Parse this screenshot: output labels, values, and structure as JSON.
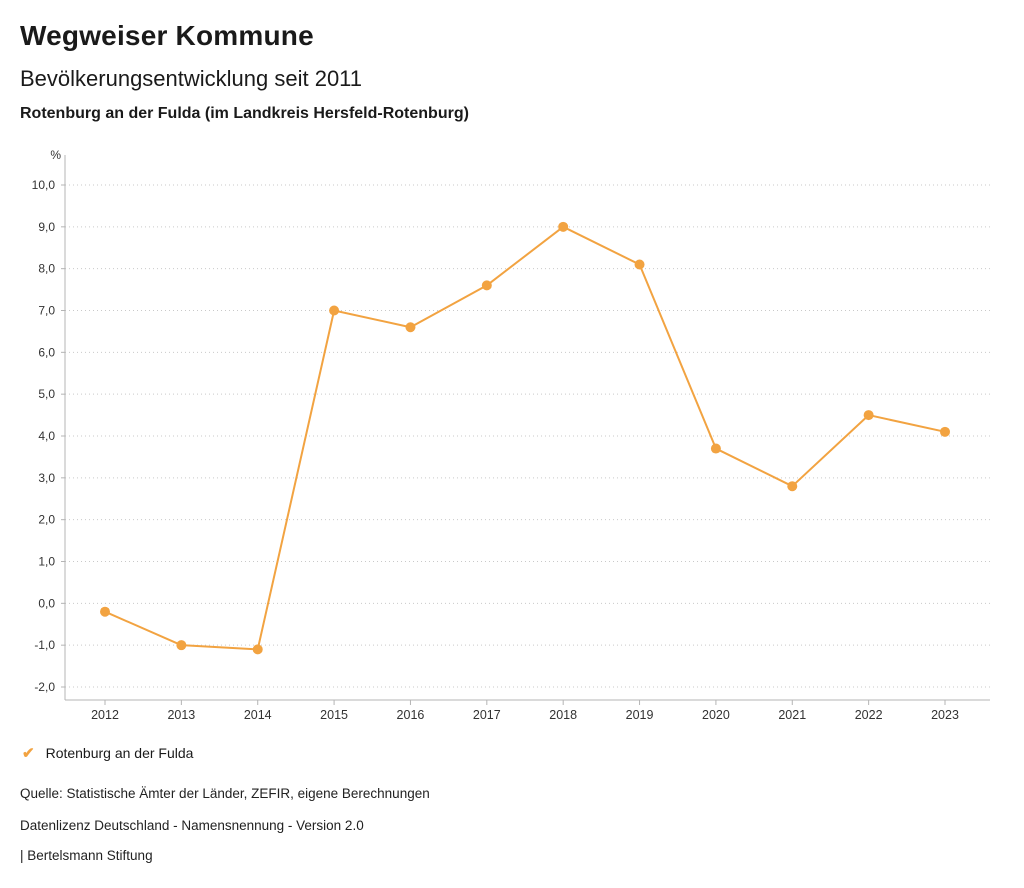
{
  "header": {
    "title": "Wegweiser Kommune",
    "subtitle": "Bevölkerungsentwicklung seit 2011",
    "region": "Rotenburg an der Fulda (im Landkreis Hersfeld-Rotenburg)"
  },
  "chart_data": {
    "type": "line",
    "title": "Bevölkerungsentwicklung seit 2011",
    "unit_label": "%",
    "xlabel": "",
    "ylabel": "%",
    "categories": [
      "2012",
      "2013",
      "2014",
      "2015",
      "2016",
      "2017",
      "2018",
      "2019",
      "2020",
      "2021",
      "2022",
      "2023"
    ],
    "series": [
      {
        "name": "Rotenburg an der Fulda",
        "values": [
          -0.2,
          -1.0,
          -1.1,
          7.0,
          6.6,
          7.6,
          9.0,
          8.1,
          3.7,
          2.8,
          4.5,
          4.1
        ]
      }
    ],
    "ylim": [
      -2.0,
      10.0
    ],
    "ytick_step": 1.0,
    "grid": true,
    "gridline_style": "dotted",
    "legend_position": "bottom-left",
    "line_color": "#F2A341",
    "axis_color": "#b4b4b4",
    "grid_color": "#c9c9c9",
    "tick_text_color": "#333333"
  },
  "legend": {
    "items": [
      {
        "label": "Rotenburg an der Fulda",
        "color": "#F2A341",
        "check_icon": "✔"
      }
    ]
  },
  "footer": {
    "source": "Quelle: Statistische Ämter der Länder, ZEFIR, eigene Berechnungen",
    "license": "Datenlizenz Deutschland - Namensnennung - Version 2.0",
    "publisher": "| Bertelsmann Stiftung"
  }
}
